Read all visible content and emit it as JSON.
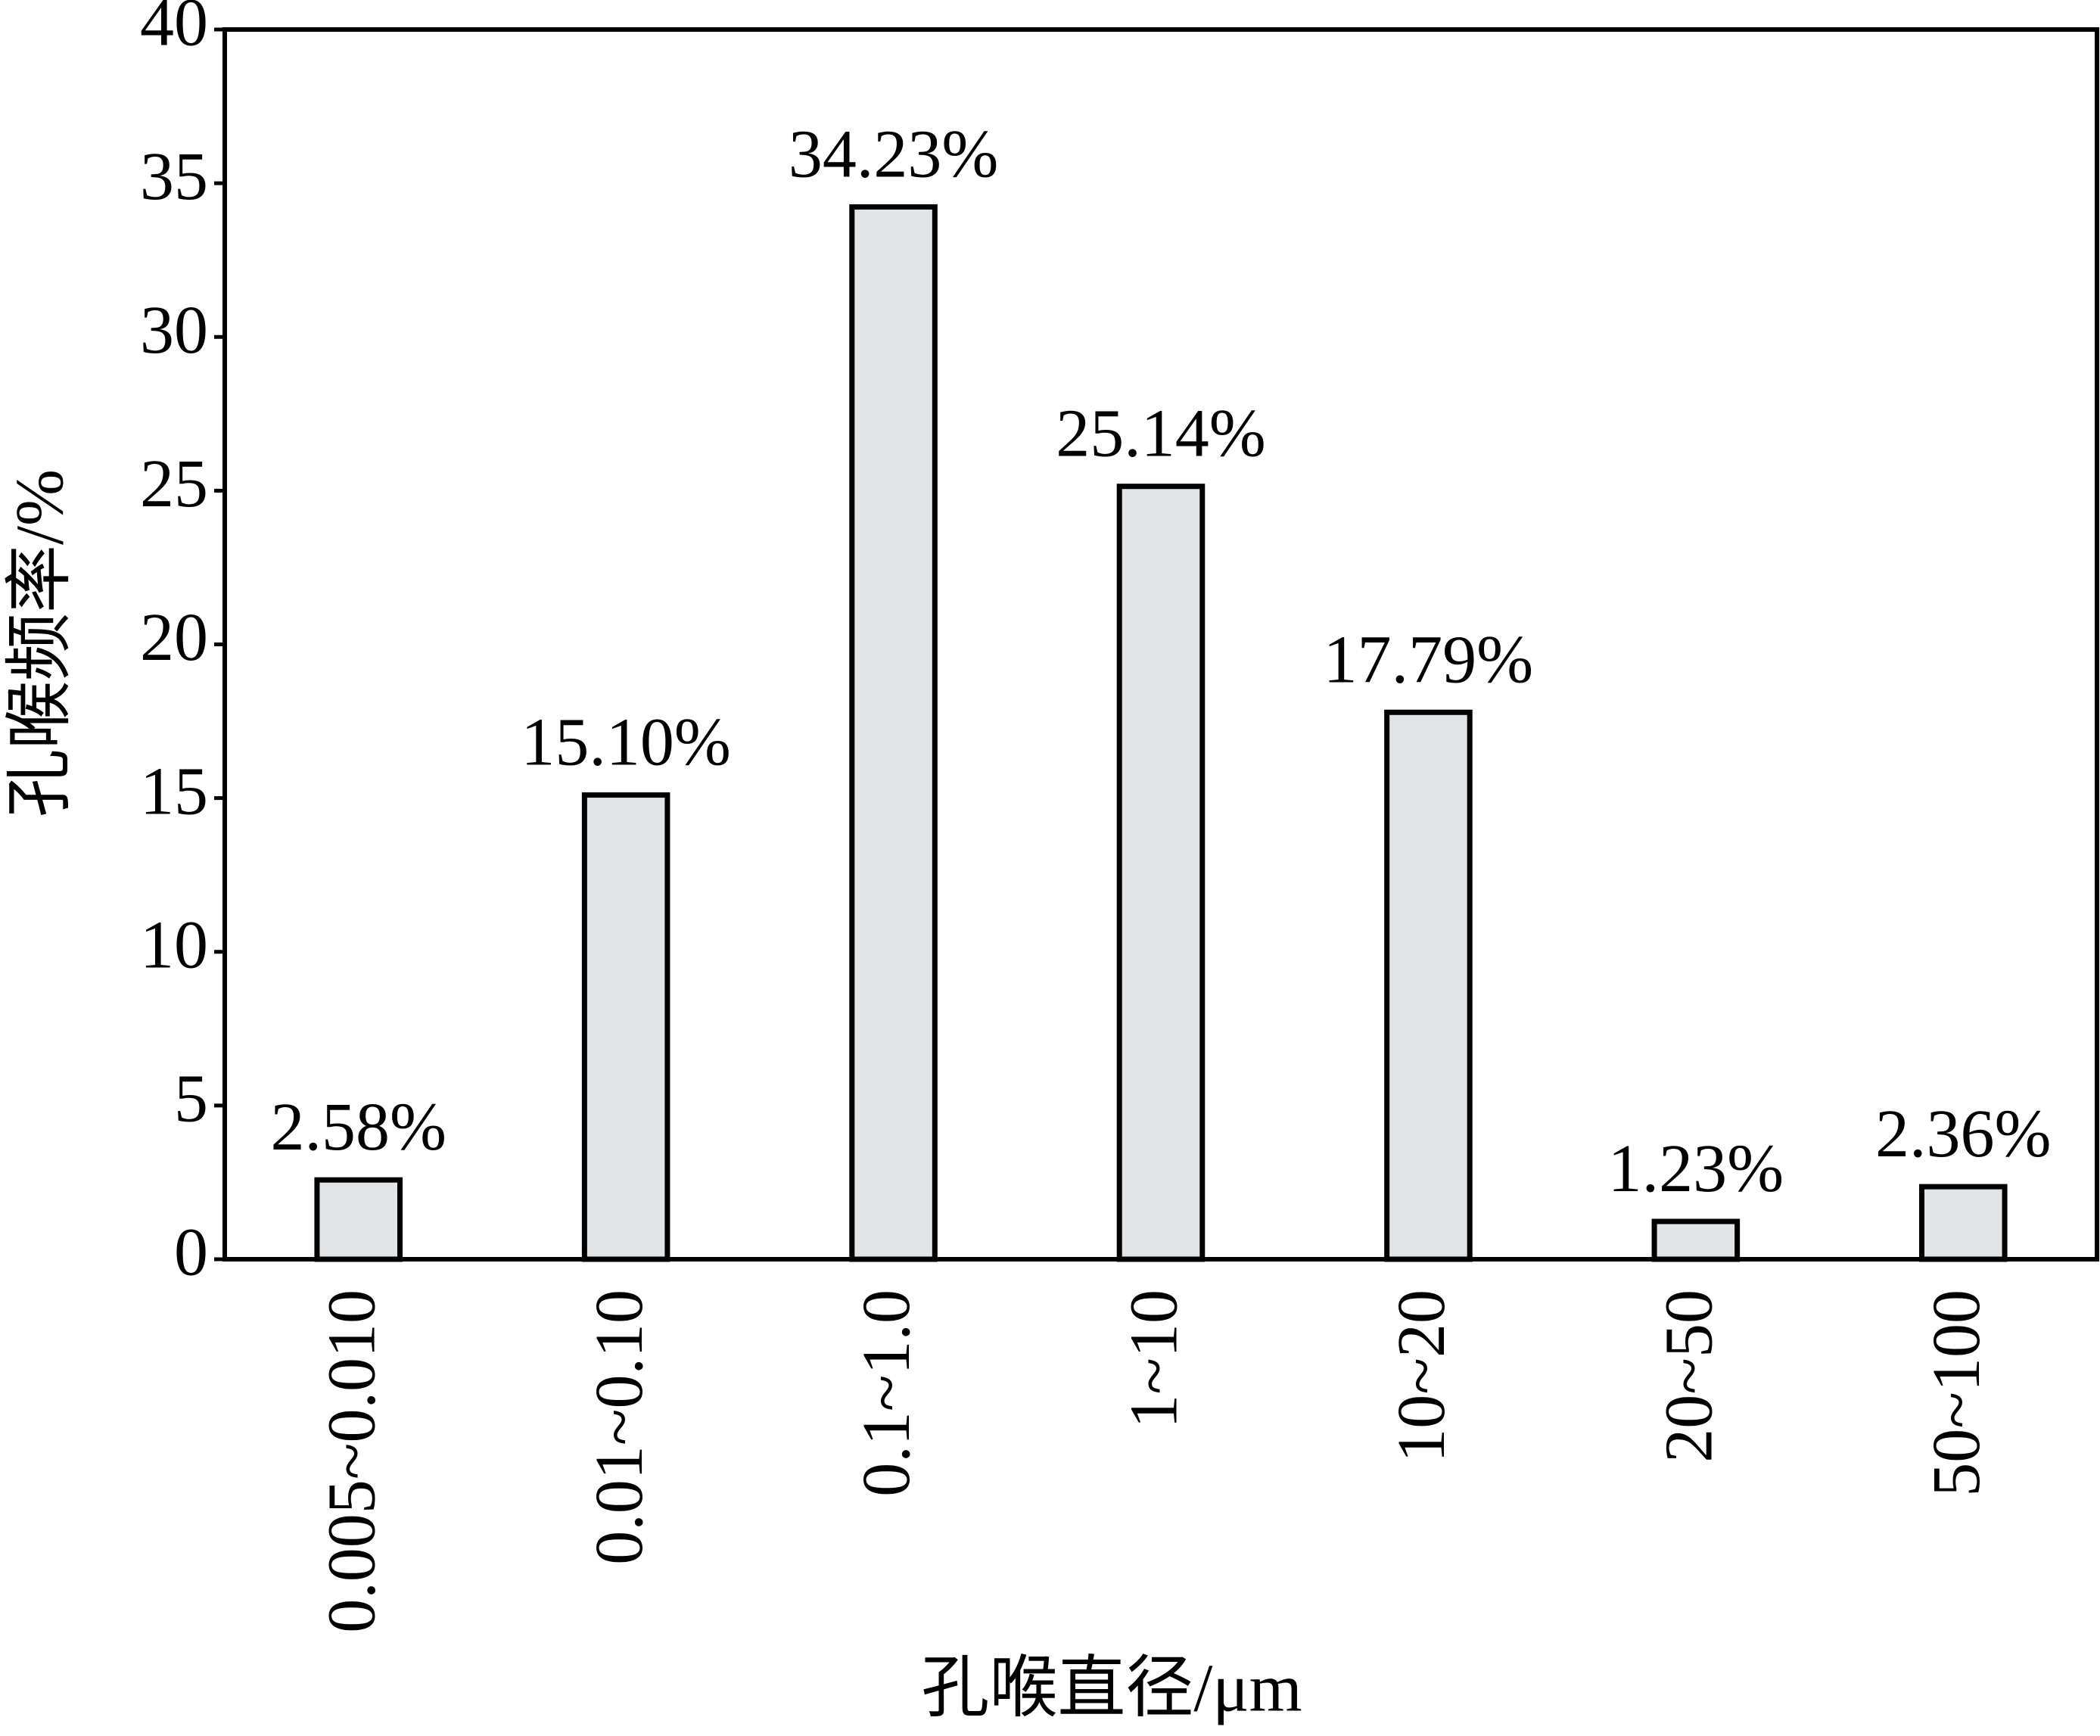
{
  "chart_data": {
    "type": "bar",
    "x_label": "孔喉直径/μm",
    "y_label": "孔喉频率/%",
    "categories": [
      "0.005~0.010",
      "0.01~0.10",
      "0.1~1.0",
      "1~10",
      "10~20",
      "20~50",
      "50~100"
    ],
    "values": [
      2.58,
      15.1,
      34.23,
      25.14,
      17.79,
      1.23,
      2.36
    ],
    "value_labels": [
      "2.58%",
      "15.10%",
      "34.23%",
      "25.14%",
      "17.79%",
      "1.23%",
      "2.36%"
    ],
    "color": "#e1e4e6",
    "ylim": [
      0,
      40
    ],
    "yticks": [
      0,
      5,
      10,
      15,
      20,
      25,
      30,
      35,
      40
    ],
    "grid": false
  }
}
